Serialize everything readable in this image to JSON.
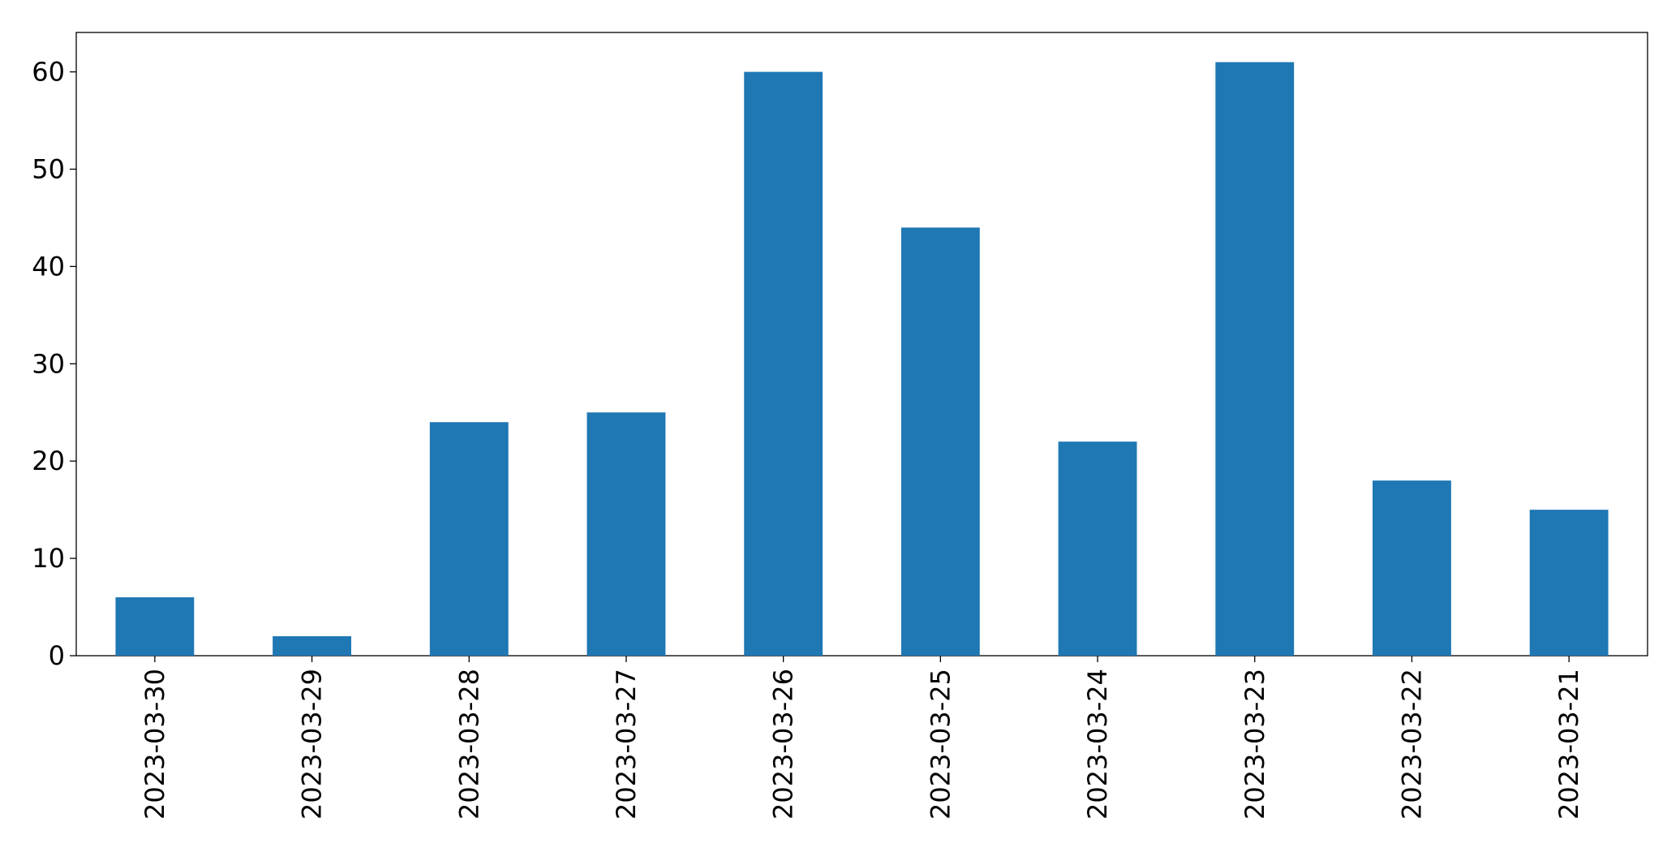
{
  "chart_data": {
    "type": "bar",
    "categories": [
      "2023-03-30",
      "2023-03-29",
      "2023-03-28",
      "2023-03-27",
      "2023-03-26",
      "2023-03-25",
      "2023-03-24",
      "2023-03-23",
      "2023-03-22",
      "2023-03-21"
    ],
    "values": [
      6,
      2,
      24,
      25,
      60,
      44,
      22,
      61,
      18,
      15
    ],
    "color": "#1f77b4",
    "ylim": [
      0,
      64.05
    ],
    "yticks": [
      0,
      10,
      20,
      30,
      40,
      50,
      60
    ],
    "grid": false
  }
}
